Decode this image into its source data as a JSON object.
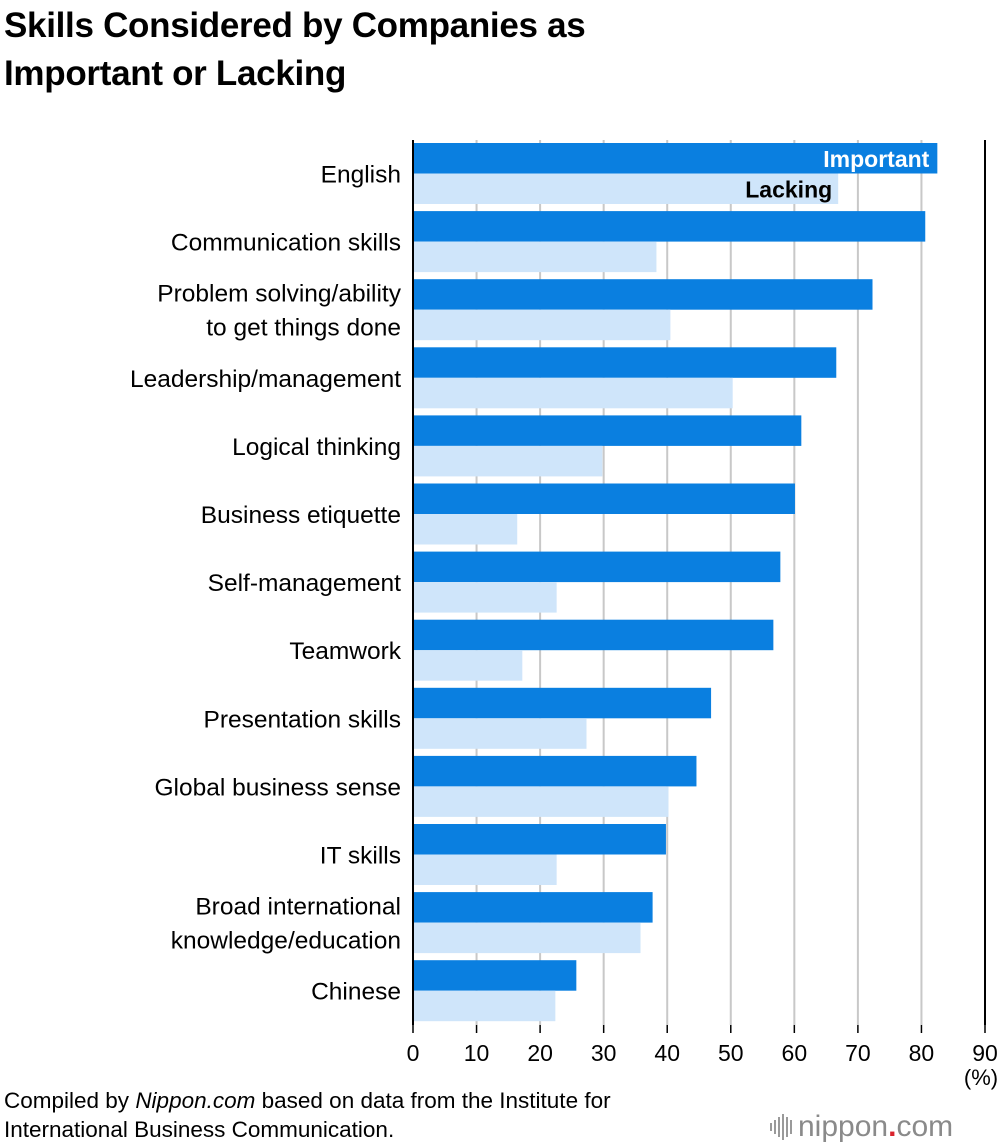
{
  "title_lines": [
    "Skills Considered by Companies as",
    "Important or Lacking"
  ],
  "footer": {
    "line1_before": "Compiled by ",
    "line1_italic": "Nippon.com",
    "line1_after": " based on data from the Institute for",
    "line2": "International Business Communication."
  },
  "logo": {
    "word1": "nippon",
    "dot": ".",
    "word2": "com"
  },
  "colors": {
    "important": "#0a7fe0",
    "lacking": "#cfe5fa",
    "grid": "#c8c8c8",
    "axis": "#000000"
  },
  "chart_data": {
    "type": "bar",
    "orientation": "horizontal",
    "title": "Skills Considered by Companies as Important or Lacking",
    "unit_label": "(%)",
    "xlim": [
      0,
      90
    ],
    "xticks": [
      0,
      10,
      20,
      30,
      40,
      50,
      60,
      70,
      80,
      90
    ],
    "grid": true,
    "categories": [
      [
        "English"
      ],
      [
        "Communication skills"
      ],
      [
        "Problem solving/ability",
        "to get things done"
      ],
      [
        "Leadership/management"
      ],
      [
        "Logical thinking"
      ],
      [
        "Business etiquette"
      ],
      [
        "Self-management"
      ],
      [
        "Teamwork"
      ],
      [
        "Presentation skills"
      ],
      [
        "Global business sense"
      ],
      [
        "IT skills"
      ],
      [
        "Broad international",
        "knowledge/education"
      ],
      [
        "Chinese"
      ]
    ],
    "series": [
      {
        "name": "Important",
        "values": [
          82.5,
          80.6,
          72.3,
          66.6,
          61.1,
          60.1,
          57.8,
          56.7,
          46.9,
          44.6,
          39.8,
          37.7,
          25.7
        ]
      },
      {
        "name": "Lacking",
        "values": [
          66.9,
          38.3,
          40.5,
          50.3,
          29.8,
          16.4,
          22.6,
          17.2,
          27.3,
          40.2,
          22.6,
          35.8,
          22.4
        ]
      }
    ]
  }
}
